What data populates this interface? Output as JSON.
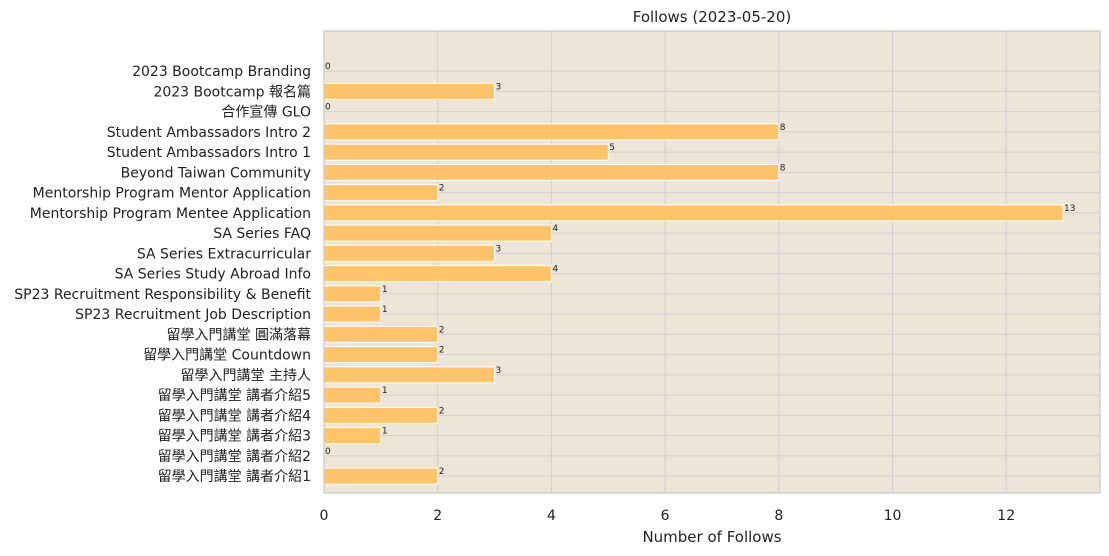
{
  "chart_data": {
    "type": "bar",
    "orientation": "horizontal",
    "title": "Follows (2023-05-20)",
    "xlabel": "Number of Follows",
    "ylabel": "",
    "xlim": [
      0,
      13.65
    ],
    "xticks": [
      0,
      2,
      4,
      6,
      8,
      10,
      12
    ],
    "grid": true,
    "colors": {
      "bar": "#ffc36b",
      "bar_edge": "#ffffff",
      "plot_bg": "#ede5d8",
      "grid": "#d4ccd4",
      "axis": "#c9c9c9"
    },
    "categories": [
      "2023 Bootcamp Branding",
      "2023 Bootcamp 報名篇",
      "合作宣傳 GLO",
      "Student Ambassadors Intro 2",
      "Student Ambassadors Intro 1",
      "Beyond Taiwan Community",
      "Mentorship Program Mentor Application",
      "Mentorship Program Mentee Application",
      "SA Series FAQ",
      "SA Series Extracurricular",
      "SA Series Study Abroad Info",
      "SP23 Recruitment Responsibility & Benefit",
      "SP23 Recruitment Job Description",
      "留學入門講堂 圓滿落幕",
      "留學入門講堂 Countdown",
      "留學入門講堂 主持人",
      "留學入門講堂 講者介紹5",
      "留學入門講堂 講者介紹4",
      "留學入門講堂 講者介紹3",
      "留學入門講堂 講者介紹2",
      "留學入門講堂 講者介紹1"
    ],
    "values": [
      0,
      3,
      0,
      8,
      5,
      8,
      2,
      13,
      4,
      3,
      4,
      1,
      1,
      2,
      2,
      3,
      1,
      2,
      1,
      0,
      2
    ]
  }
}
